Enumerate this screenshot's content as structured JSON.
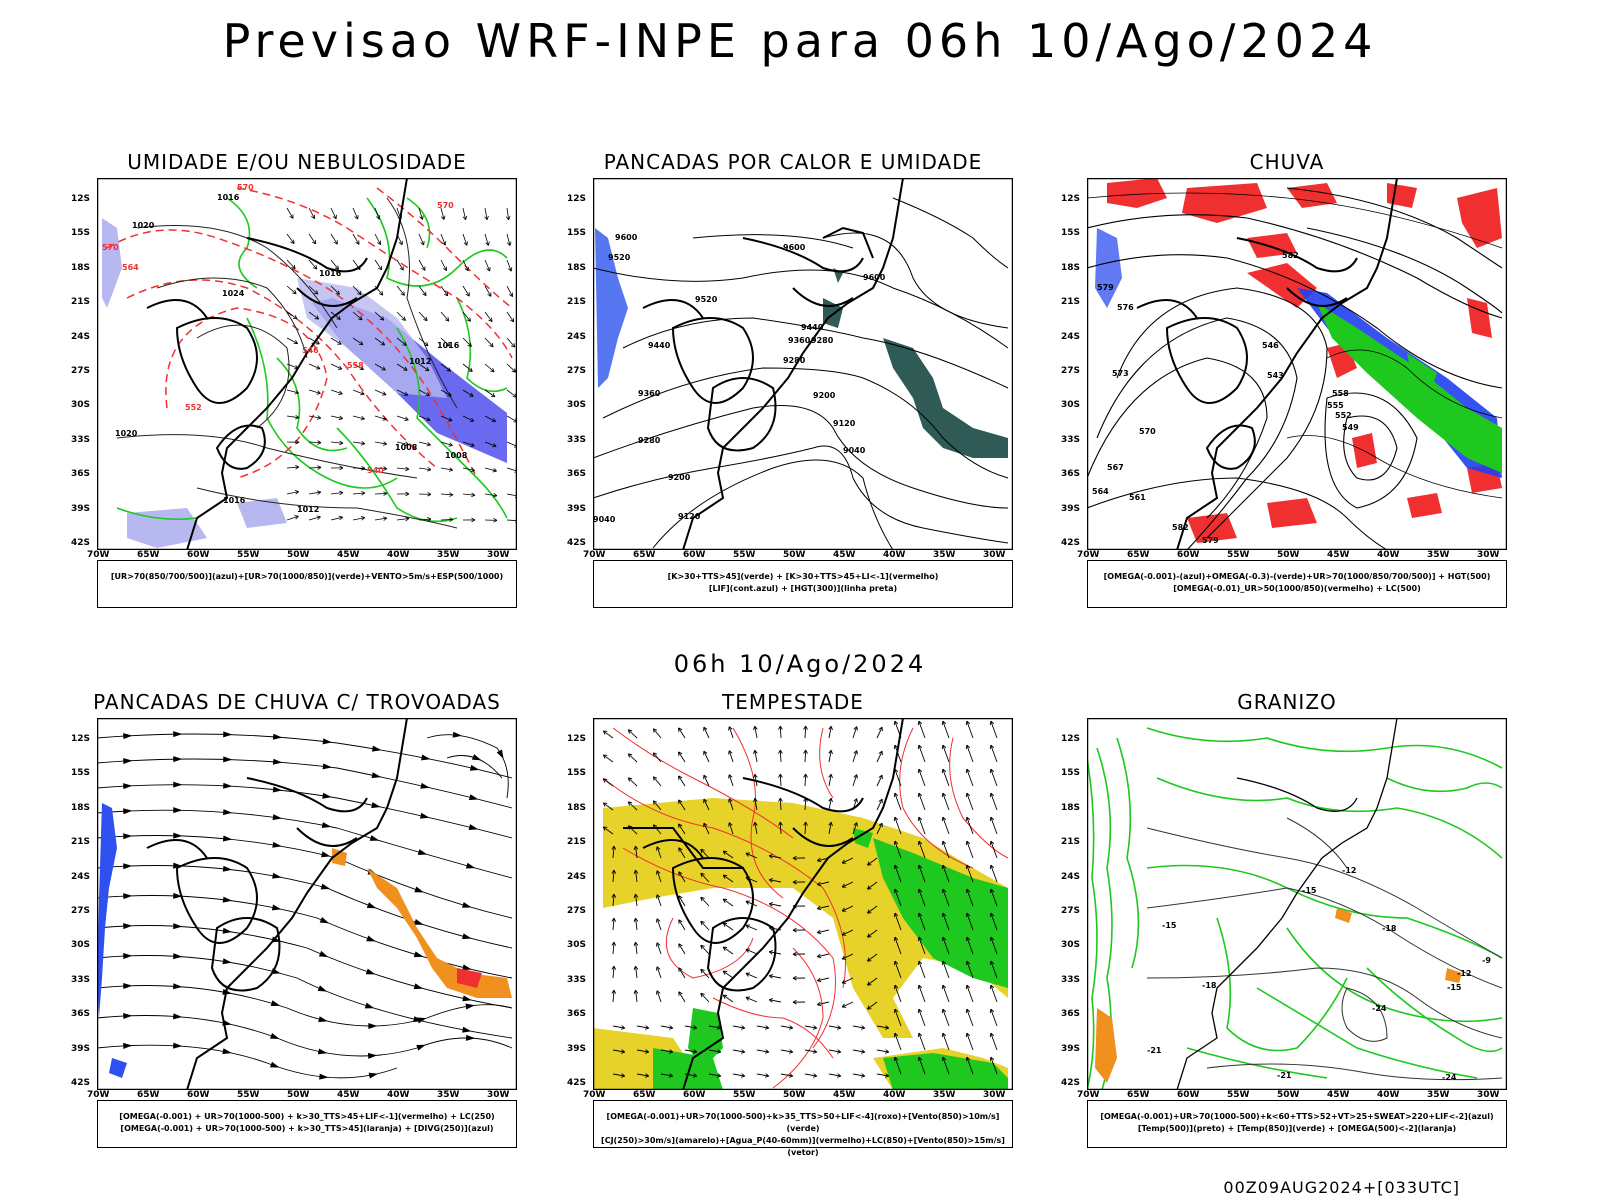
{
  "main_title": "Previsao WRF-INPE  para 06h 10/Ago/2024",
  "mid_label": "06h 10/Ago/2024",
  "footer": "00Z09AUG2024+[033UTC]",
  "lat_ticks": [
    "12S",
    "15S",
    "18S",
    "21S",
    "24S",
    "27S",
    "30S",
    "33S",
    "36S",
    "39S",
    "42S"
  ],
  "lon_ticks": [
    "70W",
    "65W",
    "60W",
    "55W",
    "50W",
    "45W",
    "40W",
    "35W",
    "30W"
  ],
  "panels": [
    {
      "title": "UMIDADE E/OU NEBULOSIDADE",
      "caption_lines": [
        "[UR>70(850/700/500)](azul)+[UR>70(1000/850)](verde)+VENTO>5m/s+ESP(500/1000)"
      ],
      "contour_labels": [
        "1016",
        "1020",
        "1024",
        "1016",
        "1012",
        "1008",
        "1008",
        "1020",
        "1016",
        "1012",
        "1016"
      ],
      "red_labels": [
        "570",
        "570",
        "570",
        "564",
        "558",
        "552",
        "546",
        "540"
      ]
    },
    {
      "title": "PANCADAS POR CALOR E UMIDADE",
      "caption_lines": [
        "[K>30+TTS>45](verde) + [K>30+TTS>45+LI<-1](vermelho)",
        "[LIF](cont.azul) + [HGT(300)](linha preta)"
      ],
      "contour_labels": [
        "9600",
        "9520",
        "9600",
        "9600",
        "9520",
        "9440",
        "9440",
        "9360",
        "9360",
        "9280",
        "9280",
        "9200",
        "9200",
        "9120",
        "9120",
        "9040",
        "9040",
        "9280"
      ]
    },
    {
      "title": "CHUVA",
      "caption_lines": [
        "[OMEGA(-0.001)-(azul)+OMEGA(-0.3)-(verde)+UR>70(1000/850/700/500)] + HGT(500)",
        "[OMEGA(-0.01)_UR>50(1000/850)(vermelho) + LC(500)"
      ],
      "contour_labels": [
        "582",
        "579",
        "576",
        "573",
        "570",
        "567",
        "564",
        "561",
        "558",
        "555",
        "552",
        "549",
        "546",
        "543",
        "582",
        "579"
      ]
    },
    {
      "title": "PANCADAS DE CHUVA C/ TROVOADAS",
      "caption_lines": [
        "[OMEGA(-0.001) + UR>70(1000-500) + k>30_TTS>45+LIF<-1](vermelho) + LC(250)",
        "[OMEGA(-0.001) + UR>70(1000-500) + k>30_TTS>45](laranja) + [DIVG(250)](azul)"
      ]
    },
    {
      "title": "TEMPESTADE",
      "caption_lines": [
        "[OMEGA(-0.001)+UR>70(1000-500)+k>35_TTS>50+LIF<-4](roxo)+[Vento(850)>10m/s](verde)",
        "[CJ(250)>30m/s](amarelo)+[Agua_P(40-60mm)](vermelho)+LC(850)+[Vento(850)>15m/s](vetor)"
      ]
    },
    {
      "title": "GRANIZO",
      "caption_lines": [
        "[OMEGA(-0.001)+UR>70(1000-500)+k<60+TTS>52+VT>25+SWEAT>220+LIF<-2](azul)",
        "[Temp(500)](preto) + [Temp(850)](verde) + [OMEGA(500)<-2](laranja)"
      ],
      "contour_labels": [
        "-12",
        "-15",
        "-15",
        "-18",
        "-18",
        "-21",
        "-24",
        "-21",
        "-24",
        "-9",
        "-12",
        "-15"
      ]
    }
  ],
  "colors": {
    "blue_fill": "#6a6af0",
    "light_blue": "#b8b8f0",
    "green": "#1ec81e",
    "red": "#f03030",
    "orange": "#f0901e",
    "yellow": "#e6d228",
    "teal": "#2f5a55"
  }
}
